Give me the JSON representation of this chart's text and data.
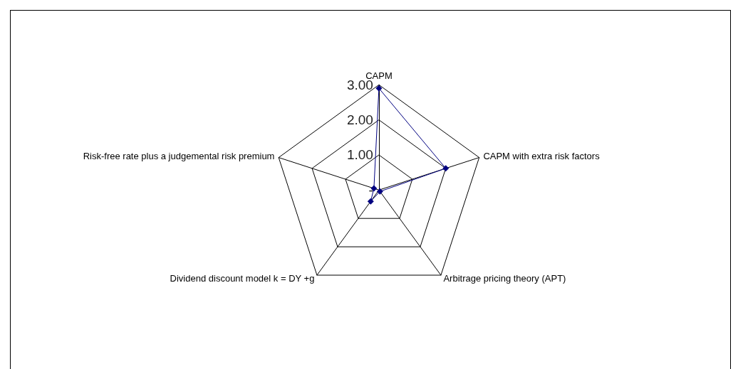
{
  "chart_data": {
    "type": "radar",
    "categories": [
      "CAPM",
      "CAPM with extra risk factors",
      "Arbitrage pricing theory (APT)",
      "Dividend discount model k = DY +g",
      "Risk-free rate plus a judgemental risk premium"
    ],
    "series": [
      {
        "color": "#000080",
        "values": [
          2.9,
          2.0,
          0.05,
          0.4,
          0.15
        ]
      }
    ],
    "ylim": [
      0,
      3
    ],
    "yticks": [
      {
        "value": 0,
        "label": "-"
      },
      {
        "value": 1,
        "label": "1.00"
      },
      {
        "value": 2,
        "label": "2.00"
      },
      {
        "value": 3,
        "label": "3.00"
      }
    ],
    "marker": "diamond",
    "line_style": "solid"
  }
}
